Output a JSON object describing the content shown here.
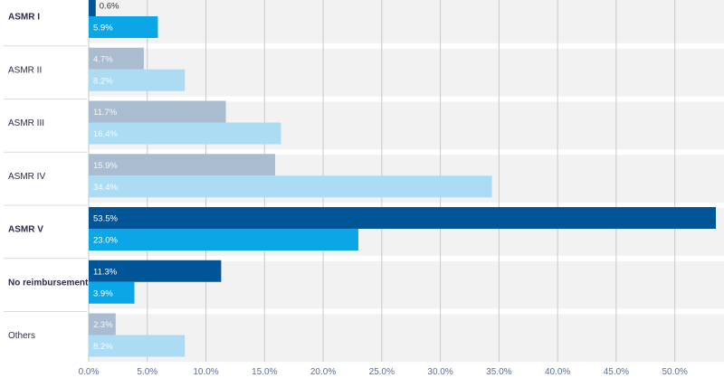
{
  "chart_data": {
    "type": "bar",
    "orientation": "horizontal",
    "categories": [
      "ASMR I",
      "ASMR II",
      "ASMR III",
      "ASMR IV",
      "ASMR V",
      "No reimbursement",
      "Others"
    ],
    "highlighted_categories": [
      "ASMR I",
      "ASMR V",
      "No reimbursement"
    ],
    "series": [
      {
        "values": [
          0.6,
          4.7,
          11.7,
          15.9,
          53.5,
          11.3,
          2.3
        ],
        "labels": [
          "0.6%",
          "4.7%",
          "11.7%",
          "15.9%",
          "53.5%",
          "11.3%",
          "2.3%"
        ],
        "color": "#005596",
        "muted_color": "#a9bcd0"
      },
      {
        "values": [
          5.9,
          8.2,
          16.4,
          34.4,
          23.0,
          3.9,
          8.2
        ],
        "labels": [
          "5.9%",
          "8.2%",
          "16.4%",
          "34.4%",
          "23.0%",
          "3.9%",
          "8.2%"
        ],
        "color": "#0aa6e6",
        "muted_color": "#acdcf3"
      }
    ],
    "x_ticks": [
      "0.0%",
      "5.0%",
      "10.0%",
      "15.0%",
      "20.0%",
      "25.0%",
      "30.0%",
      "35.0%",
      "40.0%",
      "45.0%",
      "50.0%"
    ],
    "xlim": [
      0,
      53.5
    ],
    "xlabel": "",
    "ylabel": "",
    "title": "",
    "grid": true,
    "legend": "none",
    "colors": {
      "grid": "#c9c9c9",
      "row_background": "#f2f2f2",
      "separator": "#dcdcdc"
    }
  }
}
